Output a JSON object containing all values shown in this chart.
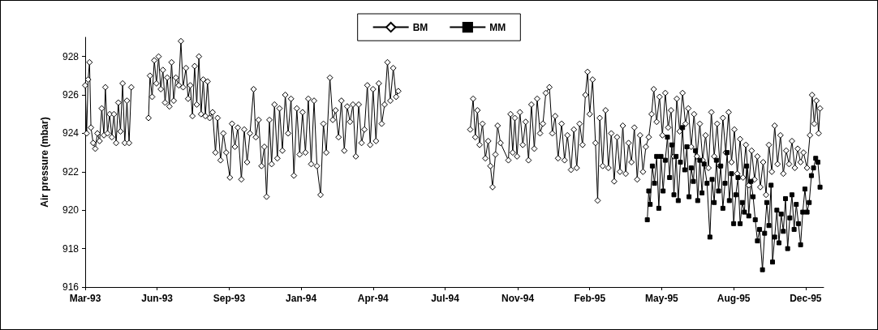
{
  "chart_data": {
    "type": "line",
    "ylabel": "Air pressure (mbar)",
    "xlim": [
      "1993-03-10",
      "1995-12-31"
    ],
    "xticks": [
      {
        "value": "1993-03-10",
        "label": "Mar-93"
      },
      {
        "value": "1993-06-18",
        "label": "Jun-93"
      },
      {
        "value": "1993-09-26",
        "label": "Sep-93"
      },
      {
        "value": "1994-01-04",
        "label": "Jan-94"
      },
      {
        "value": "1994-04-14",
        "label": "Apr-94"
      },
      {
        "value": "1994-07-23",
        "label": "Jul-94"
      },
      {
        "value": "1994-11-01",
        "label": "Nov-94"
      },
      {
        "value": "1995-02-09",
        "label": "Feb-95"
      },
      {
        "value": "1995-05-20",
        "label": "May-95"
      },
      {
        "value": "1995-08-28",
        "label": "Aug-95"
      },
      {
        "value": "1995-12-06",
        "label": "Dec-95"
      }
    ],
    "ylim": [
      916,
      929
    ],
    "yticks": [
      916,
      918,
      920,
      922,
      924,
      926,
      928
    ],
    "grid": false,
    "legend": "top",
    "line_style": "solid",
    "series": [
      {
        "name": "BM",
        "color": "#000000",
        "marker": "diamond",
        "x": [
          "1993-03-10",
          "1993-03-12",
          "1993-03-14",
          "1993-03-16",
          "1993-03-18",
          "1993-03-21",
          "1993-03-24",
          "1993-03-27",
          "1993-03-30",
          "1993-04-02",
          "1993-04-05",
          "1993-04-07",
          "1993-04-10",
          "1993-04-13",
          "1993-04-16",
          "1993-04-19",
          "1993-04-22",
          "1993-04-25",
          "1993-04-28",
          "1993-05-01",
          "1993-05-04",
          "1993-05-07",
          "1993-05-10",
          "1993-05-13",
          "1993-05-25",
          "1993-06-06",
          "1993-06-08",
          "1993-06-11",
          "1993-06-14",
          "1993-06-17",
          "1993-06-20",
          "1993-06-23",
          "1993-06-26",
          "1993-06-29",
          "1993-07-02",
          "1993-07-05",
          "1993-07-08",
          "1993-07-11",
          "1993-07-14",
          "1993-07-18",
          "1993-07-21",
          "1993-07-24",
          "1993-07-28",
          "1993-07-31",
          "1993-08-03",
          "1993-08-06",
          "1993-08-09",
          "1993-08-12",
          "1993-08-15",
          "1993-08-18",
          "1993-08-21",
          "1993-08-24",
          "1993-08-27",
          "1993-08-30",
          "1993-09-03",
          "1993-09-07",
          "1993-09-10",
          "1993-09-14",
          "1993-09-18",
          "1993-09-22",
          "1993-09-27",
          "1993-09-30",
          "1993-10-04",
          "1993-10-08",
          "1993-10-13",
          "1993-10-17",
          "1993-10-21",
          "1993-10-25",
          "1993-10-30",
          "1993-11-02",
          "1993-11-06",
          "1993-11-10",
          "1993-11-14",
          "1993-11-17",
          "1993-11-21",
          "1993-11-24",
          "1993-11-28",
          "1993-12-02",
          "1993-12-05",
          "1993-12-09",
          "1993-12-13",
          "1993-12-17",
          "1993-12-21",
          "1993-12-25",
          "1993-12-29",
          "1994-01-02",
          "1994-01-06",
          "1994-01-10",
          "1994-01-14",
          "1994-01-18",
          "1994-01-22",
          "1994-01-26",
          "1994-01-31",
          "1994-02-04",
          "1994-02-08",
          "1994-02-13",
          "1994-02-17",
          "1994-02-21",
          "1994-02-25",
          "1994-03-01",
          "1994-03-05",
          "1994-03-09",
          "1994-03-13",
          "1994-03-17",
          "1994-03-21",
          "1994-03-25",
          "1994-03-29",
          "1994-04-02",
          "1994-04-06",
          "1994-04-10",
          "1994-04-14",
          "1994-04-18",
          "1994-04-22",
          "1994-04-26",
          "1994-04-30",
          "1994-05-04",
          "1994-05-08",
          "1994-05-12",
          "1994-05-16",
          "1994-05-19",
          "1994-07-01",
          "1994-08-27",
          "1994-08-31",
          "1994-09-03",
          "1994-09-06",
          "1994-09-09",
          "1994-09-13",
          "1994-09-17",
          "1994-09-21",
          "1994-09-24",
          "1994-09-27",
          "1994-10-01",
          "1994-10-04",
          "1994-10-08",
          "1994-10-19",
          "1994-10-22",
          "1994-10-25",
          "1994-10-28",
          "1994-10-31",
          "1994-11-04",
          "1994-11-08",
          "1994-11-12",
          "1994-11-16",
          "1994-11-20",
          "1994-11-24",
          "1994-11-28",
          "1994-12-02",
          "1994-12-06",
          "1994-12-10",
          "1994-12-15",
          "1994-12-19",
          "1994-12-23",
          "1994-12-27",
          "1995-01-01",
          "1995-01-05",
          "1995-01-09",
          "1995-01-14",
          "1995-01-18",
          "1995-01-22",
          "1995-01-26",
          "1995-01-30",
          "1995-02-03",
          "1995-02-06",
          "1995-02-09",
          "1995-02-13",
          "1995-02-17",
          "1995-02-20",
          "1995-02-23",
          "1995-02-27",
          "1995-03-03",
          "1995-03-07",
          "1995-03-11",
          "1995-03-15",
          "1995-03-19",
          "1995-03-23",
          "1995-03-27",
          "1995-03-31",
          "1995-04-04",
          "1995-04-08",
          "1995-04-12",
          "1995-04-16",
          "1995-04-20",
          "1995-04-24",
          "1995-04-28",
          "1995-05-02",
          "1995-05-06",
          "1995-05-09",
          "1995-05-13",
          "1995-05-17",
          "1995-05-21",
          "1995-05-25",
          "1995-05-29",
          "1995-06-02",
          "1995-06-06",
          "1995-06-10",
          "1995-06-14",
          "1995-06-18",
          "1995-06-22",
          "1995-06-26",
          "1995-06-30",
          "1995-07-04",
          "1995-07-08",
          "1995-07-12",
          "1995-07-16",
          "1995-07-20",
          "1995-07-24",
          "1995-07-28",
          "1995-08-01",
          "1995-08-05",
          "1995-08-09",
          "1995-08-13",
          "1995-08-17",
          "1995-08-21",
          "1995-08-25",
          "1995-08-29",
          "1995-09-02",
          "1995-09-06",
          "1995-09-10",
          "1995-09-14",
          "1995-09-18",
          "1995-09-22",
          "1995-09-26",
          "1995-09-30",
          "1995-10-04",
          "1995-10-08",
          "1995-10-12",
          "1995-10-16",
          "1995-10-20",
          "1995-10-24",
          "1995-10-28",
          "1995-11-01",
          "1995-11-05",
          "1995-11-09",
          "1995-11-13",
          "1995-11-17",
          "1995-11-21",
          "1995-11-25",
          "1995-11-29",
          "1995-12-03",
          "1995-12-08",
          "1995-12-12",
          "1995-12-15",
          "1995-12-18",
          "1995-12-21",
          "1995-12-24",
          "1995-12-26"
        ],
        "values": [
          926.5,
          924.0,
          926.8,
          927.7,
          924.3,
          923.5,
          923.2,
          924.0,
          923.6,
          925.3,
          923.9,
          926.4,
          924.0,
          925.0,
          923.8,
          925.0,
          923.5,
          925.6,
          924.1,
          926.6,
          923.5,
          925.7,
          923.5,
          926.4,
          null,
          924.8,
          927.0,
          925.9,
          927.8,
          926.6,
          928.0,
          926.3,
          927.3,
          925.6,
          926.9,
          925.4,
          927.7,
          925.7,
          926.9,
          926.5,
          928.8,
          926.4,
          927.4,
          925.8,
          926.5,
          924.9,
          927.5,
          925.5,
          928.0,
          925.0,
          926.8,
          924.9,
          926.7,
          924.8,
          925.1,
          923.0,
          924.8,
          922.6,
          924.0,
          923.0,
          921.7,
          924.5,
          923.3,
          924.3,
          921.6,
          924.2,
          922.5,
          924.0,
          926.3,
          923.8,
          924.7,
          922.3,
          923.3,
          920.7,
          924.7,
          922.4,
          925.5,
          922.7,
          925.3,
          923.1,
          926.0,
          924.0,
          925.8,
          921.8,
          925.3,
          922.9,
          925.1,
          923.0,
          925.8,
          922.4,
          925.7,
          922.3,
          920.8,
          924.5,
          923.0,
          926.9,
          924.7,
          925.2,
          923.8,
          925.7,
          923.1,
          925.4,
          924.6,
          925.5,
          922.8,
          925.5,
          923.5,
          924.2,
          926.5,
          923.4,
          926.3,
          923.6,
          926.6,
          924.5,
          925.5,
          927.7,
          925.7,
          927.4,
          925.9,
          926.2,
          null,
          924.2,
          925.8,
          923.8,
          925.2,
          923.4,
          924.5,
          922.7,
          923.6,
          922.3,
          921.2,
          922.9,
          924.4,
          923.5,
          922.6,
          925.0,
          923.0,
          924.8,
          922.8,
          925.1,
          923.4,
          924.6,
          922.6,
          925.5,
          923.2,
          925.8,
          924.0,
          924.5,
          926.1,
          926.4,
          924.0,
          924.9,
          922.7,
          924.5,
          922.6,
          923.9,
          922.1,
          924.2,
          922.2,
          924.5,
          923.4,
          926.0,
          927.2,
          925.0,
          926.8,
          923.5,
          920.5,
          924.8,
          922.3,
          925.2,
          922.2,
          924.0,
          921.5,
          923.8,
          922.0,
          924.4,
          921.9,
          923.5,
          922.5,
          924.3,
          921.6,
          923.9,
          922.0,
          923.3,
          923.8,
          925.0,
          926.3,
          924.6,
          925.9,
          923.9,
          926.1,
          924.3,
          925.2,
          922.8,
          925.8,
          924.1,
          926.1,
          924.5,
          925.3,
          923.3,
          925.0,
          922.8,
          924.5,
          922.6,
          923.9,
          922.2,
          925.1,
          922.8,
          924.5,
          922.3,
          924.8,
          923.0,
          925.1,
          922.5,
          924.2,
          921.9,
          923.7,
          921.7,
          923.4,
          921.3,
          923.1,
          921.6,
          922.8,
          921.2,
          922.5,
          920.8,
          923.4,
          922.0,
          924.4,
          922.4,
          923.9,
          921.9,
          923.1,
          922.4,
          923.6,
          922.2,
          923.2,
          922.5,
          923.0,
          922.2,
          923.9,
          926.0,
          924.5,
          925.7,
          924.0,
          925.3
        ]
      },
      {
        "name": "MM",
        "color": "#000000",
        "marker": "square",
        "x": [
          "1995-04-30",
          "1995-05-02",
          "1995-05-04",
          "1995-05-07",
          "1995-05-10",
          "1995-05-13",
          "1995-05-16",
          "1995-05-19",
          "1995-05-22",
          "1995-05-25",
          "1995-05-28",
          "1995-05-31",
          "1995-06-03",
          "1995-06-06",
          "1995-06-09",
          "1995-06-12",
          "1995-06-15",
          "1995-06-18",
          "1995-06-21",
          "1995-06-24",
          "1995-06-27",
          "1995-06-30",
          "1995-07-03",
          "1995-07-06",
          "1995-07-09",
          "1995-07-12",
          "1995-07-15",
          "1995-07-18",
          "1995-07-22",
          "1995-07-26",
          "1995-07-29",
          "1995-08-01",
          "1995-08-04",
          "1995-08-07",
          "1995-08-10",
          "1995-08-13",
          "1995-08-16",
          "1995-08-19",
          "1995-08-22",
          "1995-08-25",
          "1995-08-28",
          "1995-08-31",
          "1995-09-03",
          "1995-09-06",
          "1995-09-09",
          "1995-09-12",
          "1995-09-15",
          "1995-09-18",
          "1995-09-21",
          "1995-09-24",
          "1995-09-27",
          "1995-09-30",
          "1995-10-03",
          "1995-10-07",
          "1995-10-10",
          "1995-10-13",
          "1995-10-16",
          "1995-10-19",
          "1995-10-21",
          "1995-10-24",
          "1995-10-27",
          "1995-10-30",
          "1995-11-02",
          "1995-11-05",
          "1995-11-08",
          "1995-11-11",
          "1995-11-14",
          "1995-11-17",
          "1995-11-20",
          "1995-11-23",
          "1995-11-26",
          "1995-11-29",
          "1995-12-02",
          "1995-12-05",
          "1995-12-08",
          "1995-12-11",
          "1995-12-14",
          "1995-12-17",
          "1995-12-20",
          "1995-12-23",
          "1995-12-26"
        ],
        "values": [
          919.5,
          921.0,
          920.3,
          922.3,
          921.4,
          922.8,
          920.1,
          922.8,
          921.0,
          922.6,
          923.8,
          921.7,
          923.4,
          920.8,
          922.8,
          920.5,
          922.5,
          924.3,
          922.1,
          923.3,
          920.7,
          922.2,
          921.5,
          923.1,
          920.5,
          922.6,
          920.9,
          922.4,
          921.4,
          918.6,
          921.6,
          920.4,
          922.6,
          921.0,
          922.3,
          920.1,
          921.4,
          923.0,
          920.5,
          921.9,
          919.3,
          920.8,
          921.7,
          919.3,
          920.4,
          919.9,
          922.3,
          919.7,
          921.5,
          920.7,
          919.5,
          918.4,
          919.0,
          916.9,
          918.8,
          920.4,
          919.2,
          921.3,
          917.3,
          918.6,
          920.0,
          918.3,
          919.8,
          918.9,
          920.6,
          918.0,
          919.6,
          920.8,
          919.0,
          920.3,
          919.3,
          918.2,
          919.9,
          921.1,
          919.9,
          920.4,
          921.8,
          922.2,
          922.7,
          922.5,
          921.2
        ]
      }
    ]
  }
}
